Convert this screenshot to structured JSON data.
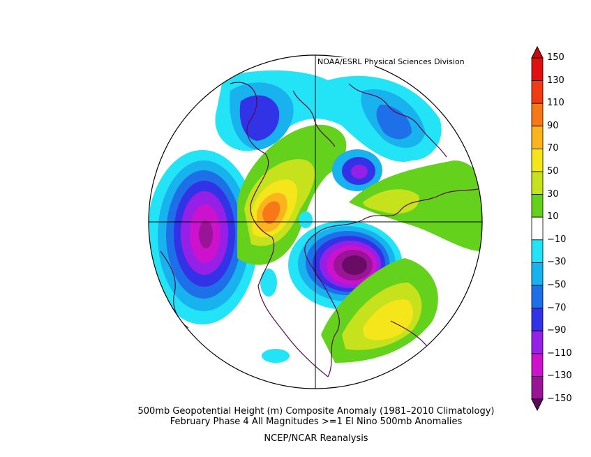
{
  "credit": "NOAA/ESRL Physical Sciences Division",
  "caption": {
    "line1": "500mb Geopotential Height (m) Composite Anomaly (1981–2010 Climatology)",
    "line2": "February Phase 4 All Magnitudes >=1   El Nino 500mb Anomalies",
    "line3": "NCEP/NCAR Reanalysis"
  },
  "colorbar": {
    "labels": [
      "150",
      "130",
      "110",
      "90",
      "70",
      "50",
      "30",
      "10",
      "−10",
      "−30",
      "−50",
      "−70",
      "−90",
      "−110",
      "−130",
      "−150"
    ],
    "bins": [
      {
        "range": [
          130,
          150
        ],
        "color": "#e01010"
      },
      {
        "range": [
          110,
          130
        ],
        "color": "#f03c10"
      },
      {
        "range": [
          90,
          110
        ],
        "color": "#f87818"
      },
      {
        "range": [
          70,
          90
        ],
        "color": "#fbb41b"
      },
      {
        "range": [
          50,
          70
        ],
        "color": "#f4e61a"
      },
      {
        "range": [
          30,
          50
        ],
        "color": "#c6e21d"
      },
      {
        "range": [
          10,
          30
        ],
        "color": "#64d21c"
      },
      {
        "range": [
          -10,
          10
        ],
        "color": "#ffffff"
      },
      {
        "range": [
          -30,
          -10
        ],
        "color": "#22e4f6"
      },
      {
        "range": [
          -50,
          -30
        ],
        "color": "#18b2ee"
      },
      {
        "range": [
          -70,
          -50
        ],
        "color": "#1d70e8"
      },
      {
        "range": [
          -90,
          -70
        ],
        "color": "#3232e6"
      },
      {
        "range": [
          -110,
          -90
        ],
        "color": "#9620e6"
      },
      {
        "range": [
          -130,
          -110
        ],
        "color": "#cc12cc"
      },
      {
        "range": [
          -150,
          -130
        ],
        "color": "#9a1497"
      }
    ],
    "over_color": "#c80a0a",
    "under_color": "#5a0c5a"
  },
  "map": {
    "projection": "north-polar-stereographic",
    "field": "500mb geopotential height anomaly",
    "units": "m",
    "coastline_color": "#5a0a4a"
  }
}
